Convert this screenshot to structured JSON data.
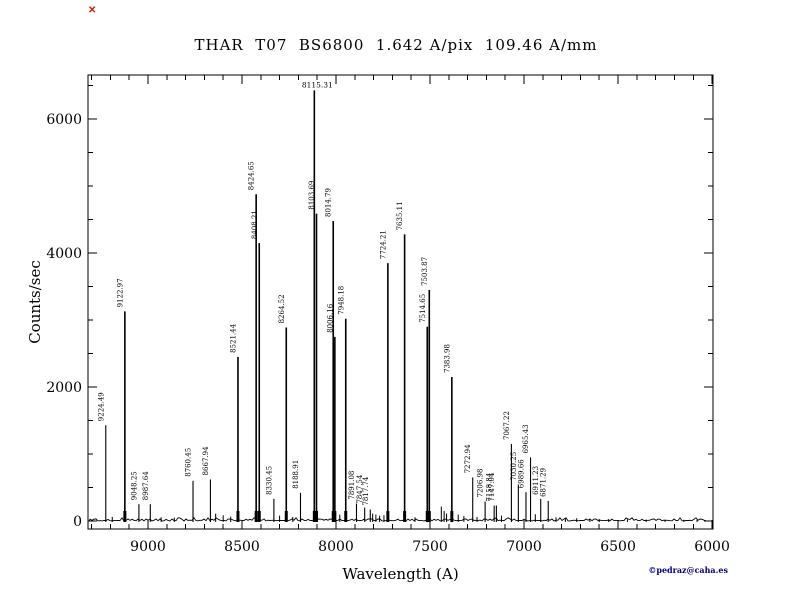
{
  "title": "THAR  T07  BS6800  1.642 A/pix  109.46 A/mm",
  "credit": "©pedraz@caha.es",
  "corner_mark": "✕",
  "colors": {
    "plot_line": "#000000",
    "text": "#000000",
    "credit": "#000080",
    "corner_mark": "#cc2200",
    "background": "#ffffff"
  },
  "chart_data": {
    "type": "line",
    "subtype": "emission-spectrum",
    "title": "THAR  T07  BS6800  1.642 A/pix  109.46 A/mm",
    "xlabel": "Wavelength (A)",
    "ylabel": "Counts/sec",
    "x_reversed": true,
    "xlim": [
      9319,
      5995
    ],
    "ylim": [
      -120,
      6660
    ],
    "x_ticks": [
      9000,
      8500,
      8000,
      7500,
      7000,
      6500,
      6000
    ],
    "x_minor_step": 100,
    "y_ticks": [
      0,
      2000,
      4000,
      6000
    ],
    "y_minor_step": 500,
    "grid": false,
    "legend": "none",
    "peaks": [
      {
        "wavelength": 9224.49,
        "counts": 1430,
        "label": "9224.49"
      },
      {
        "wavelength": 9122.97,
        "counts": 3130,
        "label": "9122.97"
      },
      {
        "wavelength": 9048.25,
        "counts": 250,
        "label": "9048.25"
      },
      {
        "wavelength": 8987.64,
        "counts": 250,
        "label": "8987.64"
      },
      {
        "wavelength": 8760.45,
        "counts": 600,
        "label": "8760.45"
      },
      {
        "wavelength": 8667.94,
        "counts": 620,
        "label": "8667.94"
      },
      {
        "wavelength": 8521.44,
        "counts": 2450,
        "label": "8521.44"
      },
      {
        "wavelength": 8424.65,
        "counts": 4880,
        "label": "8424.65"
      },
      {
        "wavelength": 8408.21,
        "counts": 4150,
        "label": "8408.21"
      },
      {
        "wavelength": 8330.45,
        "counts": 330,
        "label": "8330.45"
      },
      {
        "wavelength": 8264.52,
        "counts": 2890,
        "label": "8264.52"
      },
      {
        "wavelength": 8188.91,
        "counts": 420,
        "label": "8188.91"
      },
      {
        "wavelength": 8115.31,
        "counts": 6430,
        "label": "8115.31",
        "label_orientation": "horizontal"
      },
      {
        "wavelength": 8103.69,
        "counts": 4590,
        "label": "8103.69"
      },
      {
        "wavelength": 8014.79,
        "counts": 4480,
        "label": "8014.79"
      },
      {
        "wavelength": 8006.16,
        "counts": 2750,
        "label": "8006.16"
      },
      {
        "wavelength": 7948.18,
        "counts": 3020,
        "label": "7948.18"
      },
      {
        "wavelength": 7891.08,
        "counts": 260,
        "label": "7891.08"
      },
      {
        "wavelength": 7847.54,
        "counts": 200,
        "label": "7847.54"
      },
      {
        "wavelength": 7817.74,
        "counts": 170,
        "label": "7817.74"
      },
      {
        "wavelength": 7724.21,
        "counts": 3850,
        "label": "7724.21"
      },
      {
        "wavelength": 7635.11,
        "counts": 4280,
        "label": "7635.11"
      },
      {
        "wavelength": 7514.65,
        "counts": 2900,
        "label": "7514.65"
      },
      {
        "wavelength": 7503.87,
        "counts": 3450,
        "label": "7503.87"
      },
      {
        "wavelength": 7383.98,
        "counts": 2150,
        "label": "7383.98"
      },
      {
        "wavelength": 7272.94,
        "counts": 650,
        "label": "7272.94"
      },
      {
        "wavelength": 7206.98,
        "counts": 290,
        "label": "7206.98"
      },
      {
        "wavelength": 7158.84,
        "counts": 230,
        "label": "7158.84"
      },
      {
        "wavelength": 7147.04,
        "counts": 230,
        "label": "7147.04"
      },
      {
        "wavelength": 7067.22,
        "counts": 1150,
        "label": "7067.22"
      },
      {
        "wavelength": 7030.25,
        "counts": 540,
        "label": "7030.25"
      },
      {
        "wavelength": 6989.66,
        "counts": 430,
        "label": "6989.66"
      },
      {
        "wavelength": 6965.43,
        "counts": 950,
        "label": "6965.43"
      },
      {
        "wavelength": 6911.23,
        "counts": 330,
        "label": "6911.23"
      },
      {
        "wavelength": 6871.29,
        "counts": 300,
        "label": "6871.29"
      }
    ],
    "minor_peaks": [
      [
        9190,
        60
      ],
      [
        8930,
        55
      ],
      [
        8860,
        50
      ],
      [
        8640,
        110
      ],
      [
        8600,
        85
      ],
      [
        8560,
        65
      ],
      [
        8300,
        80
      ],
      [
        8230,
        60
      ],
      [
        7980,
        95
      ],
      [
        7805,
        110
      ],
      [
        7788,
        95
      ],
      [
        7768,
        80
      ],
      [
        7745,
        85
      ],
      [
        7580,
        55
      ],
      [
        7440,
        215
      ],
      [
        7425,
        150
      ],
      [
        7412,
        110
      ],
      [
        7350,
        95
      ],
      [
        7320,
        75
      ],
      [
        7250,
        60
      ],
      [
        7120,
        80
      ],
      [
        6940,
        100
      ],
      [
        6830,
        55
      ],
      [
        6780,
        45
      ],
      [
        6720,
        40
      ],
      [
        6650,
        35
      ],
      [
        6600,
        30
      ],
      [
        6550,
        28
      ],
      [
        6450,
        25
      ],
      [
        6350,
        22
      ],
      [
        6250,
        20
      ],
      [
        6150,
        18
      ],
      [
        6080,
        18
      ]
    ]
  }
}
